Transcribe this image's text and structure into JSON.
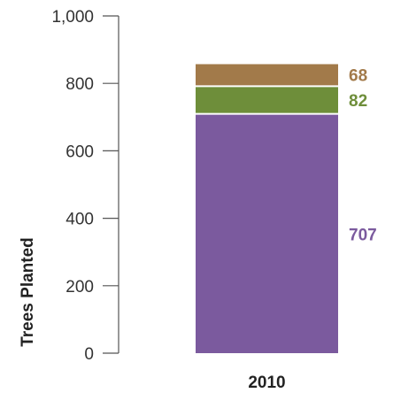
{
  "chart_data": {
    "type": "bar",
    "stacked": true,
    "categories": [
      "2010"
    ],
    "ylabel": "Trees Planted",
    "ylim": [
      0,
      1000
    ],
    "yticks": [
      0,
      200,
      400,
      600,
      800,
      1000
    ],
    "ytick_labels": [
      "0",
      "200",
      "400",
      "600",
      "800",
      "1,000"
    ],
    "grid": false,
    "series": [
      {
        "values": [
          707
        ],
        "color": "#7b5a9e",
        "label": "707"
      },
      {
        "values": [
          82
        ],
        "color": "#6e8e3a",
        "label": "82"
      },
      {
        "values": [
          68
        ],
        "color": "#a27a4a",
        "label": "68"
      }
    ]
  }
}
